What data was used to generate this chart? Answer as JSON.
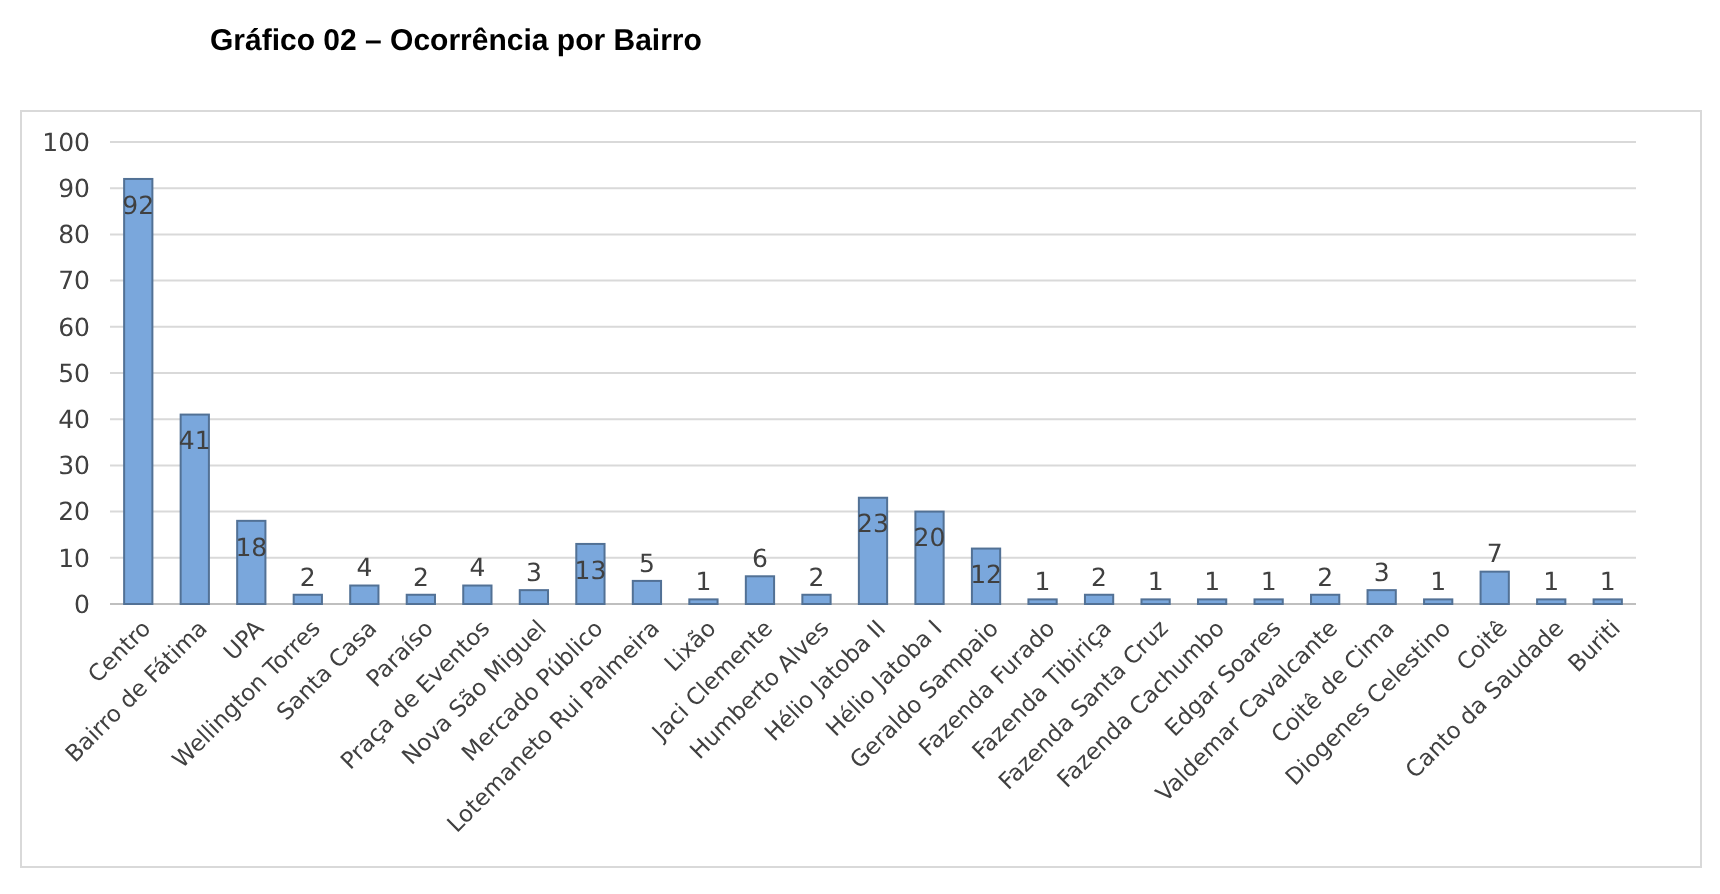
{
  "chart_data": {
    "type": "bar",
    "title": "Gráfico 02 – Ocorrência por Bairro",
    "categories": [
      "Centro",
      "Bairro de Fátima",
      "UPA",
      "Wellington Torres",
      "Santa Casa",
      "Paraíso",
      "Praça de Eventos",
      "Nova São Miguel",
      "Mercado Público",
      "Lotemaneto Rui Palmeira",
      "Lixão",
      "Jaci Clemente",
      "Humberto Alves",
      "Hélio Jatoba II",
      "Hélio Jatoba I",
      "Geraldo Sampaio",
      "Fazenda Furado",
      "Fazenda Tibiriça",
      "Fazenda Santa Cruz",
      "Fazenda Cachumbo",
      "Edgar Soares",
      "Valdemar Cavalcante",
      "Coitê de Cima",
      "Diogenes Celestino",
      "Coitê",
      "Canto da Saudade",
      "Buriti"
    ],
    "values": [
      92,
      41,
      18,
      2,
      4,
      2,
      4,
      3,
      13,
      5,
      1,
      6,
      2,
      23,
      20,
      12,
      1,
      2,
      1,
      1,
      1,
      2,
      3,
      1,
      7,
      1,
      1
    ],
    "color": "#7aa7dc",
    "ylim": [
      0,
      100
    ],
    "yticks": [
      0,
      10,
      20,
      30,
      40,
      50,
      60,
      70,
      80,
      90,
      100
    ],
    "grid": "y",
    "data_labels": true
  }
}
